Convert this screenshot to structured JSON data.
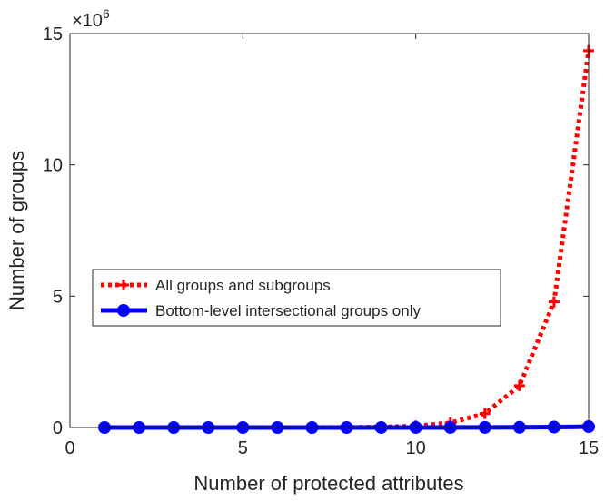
{
  "chart_data": {
    "type": "line",
    "xlabel": "Number of protected attributes",
    "ylabel": "Number of groups",
    "y_multiplier": {
      "base": "×10",
      "exponent": "6"
    },
    "xlim": [
      0,
      15
    ],
    "ylim": [
      0,
      15000000
    ],
    "xticks": [
      0,
      5,
      10,
      15
    ],
    "yticks": [
      0,
      5000000,
      10000000,
      15000000
    ],
    "xtick_labels": [
      "0",
      "5",
      "10",
      "15"
    ],
    "ytick_labels": [
      "0",
      "5",
      "10",
      "15"
    ],
    "grid": false,
    "legend_position": "center-left",
    "x": [
      1,
      2,
      3,
      4,
      5,
      6,
      7,
      8,
      9,
      10,
      11,
      12,
      13,
      14,
      15
    ],
    "series": [
      {
        "name": "All groups and subgroups",
        "color": "#ff0000",
        "line_style": "dotted",
        "marker": "plus",
        "values": [
          1,
          8,
          26,
          80,
          242,
          728,
          2186,
          6560,
          19682,
          59048,
          177146,
          531440,
          1594322,
          4782968,
          14348906
        ]
      },
      {
        "name": "Bottom-level intersectional groups only",
        "color": "#0000ff",
        "line_style": "solid",
        "marker": "circle",
        "values": [
          2,
          4,
          8,
          16,
          32,
          64,
          128,
          256,
          512,
          1024,
          2048,
          4096,
          8192,
          16384,
          32768
        ]
      }
    ]
  }
}
